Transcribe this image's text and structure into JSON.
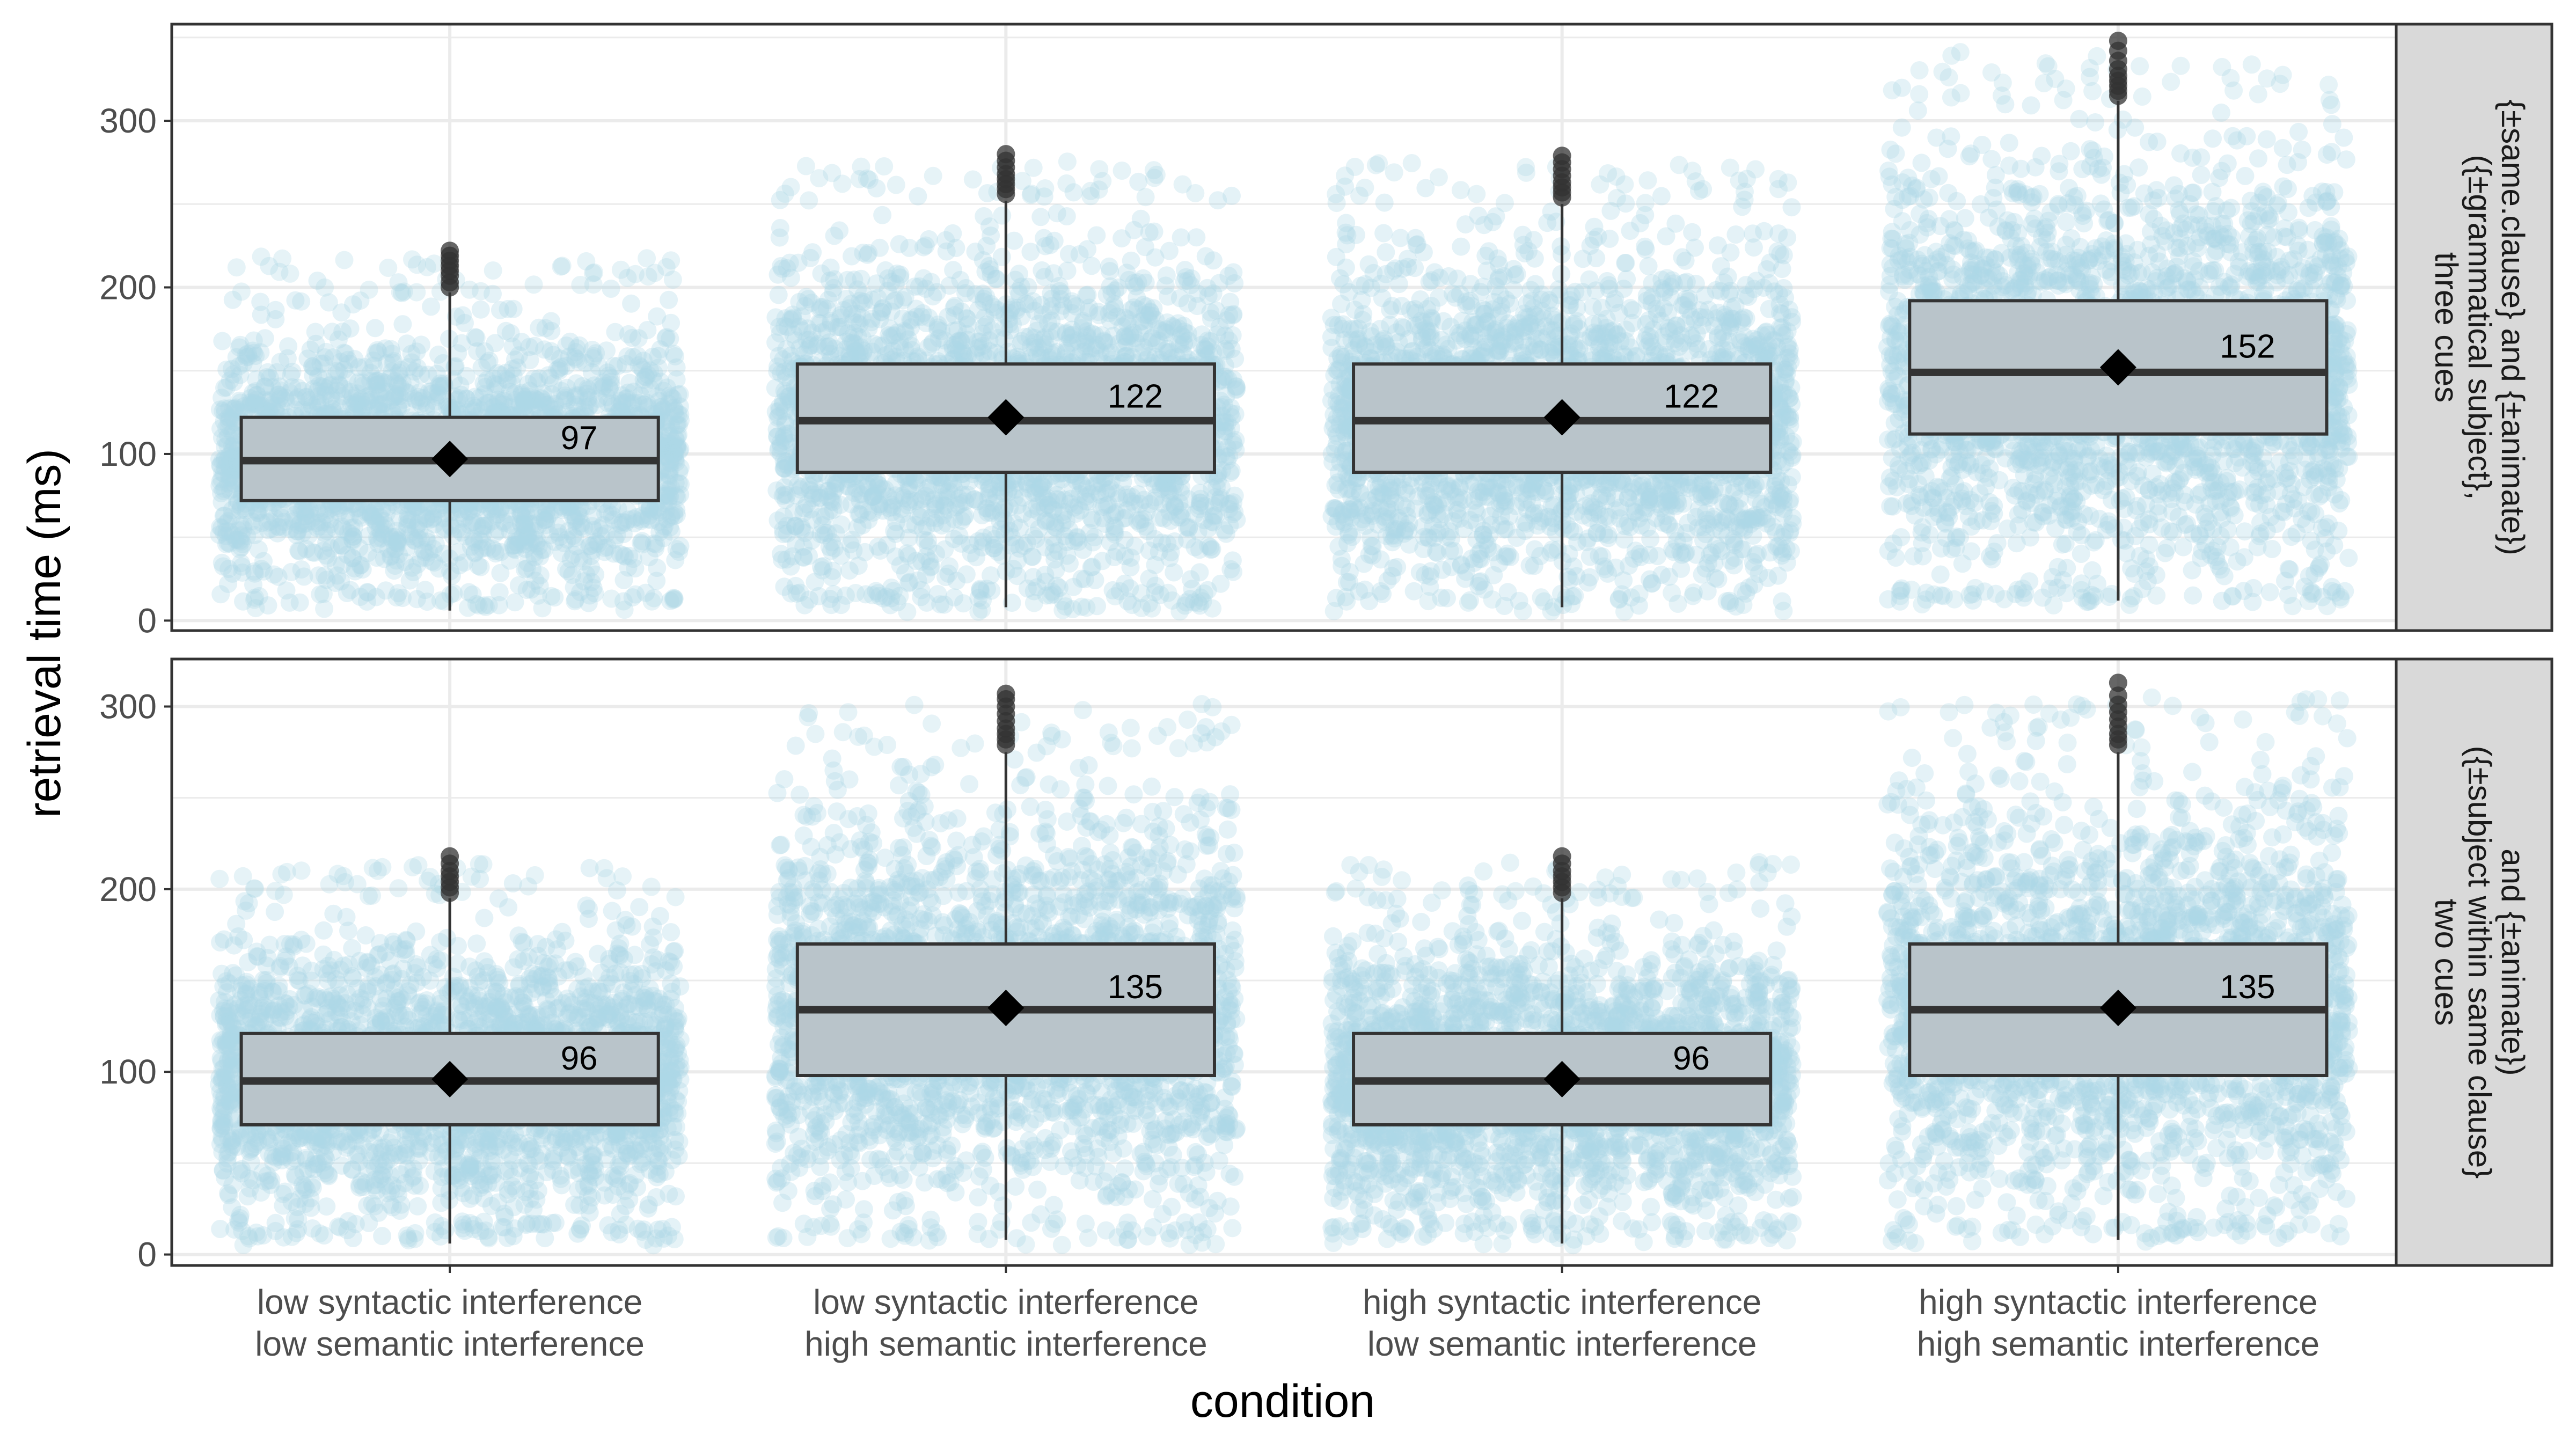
{
  "chart_data": {
    "type": "boxplot",
    "xlabel": "condition",
    "ylabel": "retrieval time (ms)",
    "ylim": [
      -6,
      358
    ],
    "y_ticks": [
      0,
      100,
      200,
      300
    ],
    "categories": [
      [
        "low syntactic interference",
        "low semantic interference"
      ],
      [
        "low syntactic interference",
        "high semantic interference"
      ],
      [
        "high syntactic interference",
        "low semantic interference"
      ],
      [
        "high syntactic interference",
        "high semantic interference"
      ]
    ],
    "colors": {
      "points": "#add8e6",
      "box_fill": "#b9c4ca",
      "line": "#333333",
      "strip": "#d9d9d9",
      "grid": "#ebebeb"
    },
    "legend": "none",
    "grid": true,
    "panels": [
      {
        "strip": [
          "three cues",
          "({±grammatical subject},",
          "{±same.clause} and {±animate})"
        ],
        "ylim": [
          -6,
          358
        ],
        "boxes": [
          {
            "q1": 72,
            "median": 96,
            "q3": 122,
            "whisker_low": 6,
            "whisker_high": 197,
            "mean": 97,
            "mean_label": "97",
            "point_min": 6,
            "point_max": 224,
            "outliers": [
              200,
              203,
              207,
              210,
              213,
              216,
              219,
              222
            ]
          },
          {
            "q1": 89,
            "median": 120,
            "q3": 154,
            "whisker_low": 8,
            "whisker_high": 252,
            "mean": 122,
            "mean_label": "122",
            "point_min": 5,
            "point_max": 282,
            "outliers": [
              256,
              259,
              262,
              265,
              268,
              272,
              276,
              280
            ]
          },
          {
            "q1": 89,
            "median": 120,
            "q3": 154,
            "whisker_low": 8,
            "whisker_high": 250,
            "mean": 122,
            "mean_label": "122",
            "point_min": 5,
            "point_max": 281,
            "outliers": [
              254,
              257,
              260,
              263,
              267,
              271,
              275,
              279
            ]
          },
          {
            "q1": 112,
            "median": 149,
            "q3": 192,
            "whisker_low": 12,
            "whisker_high": 312,
            "mean": 152,
            "mean_label": "152",
            "point_min": 8,
            "point_max": 349,
            "outliers": [
              315,
              318,
              321,
              324,
              327,
              331,
              336,
              342,
              348
            ]
          }
        ]
      },
      {
        "strip": [
          "two cues",
          "({±subject within same clause}",
          "and {±animate})"
        ],
        "ylim": [
          -6,
          326
        ],
        "boxes": [
          {
            "q1": 71,
            "median": 95,
            "q3": 121,
            "whisker_low": 6,
            "whisker_high": 195,
            "mean": 96,
            "mean_label": "96",
            "point_min": 5,
            "point_max": 221,
            "outliers": [
              198,
              201,
              204,
              207,
              210,
              214,
              218
            ]
          },
          {
            "q1": 98,
            "median": 134,
            "q3": 170,
            "whisker_low": 8,
            "whisker_high": 275,
            "mean": 135,
            "mean_label": "135",
            "point_min": 5,
            "point_max": 309,
            "outliers": [
              279,
              282,
              285,
              288,
              292,
              296,
              300,
              304,
              307
            ]
          },
          {
            "q1": 71,
            "median": 95,
            "q3": 121,
            "whisker_low": 6,
            "whisker_high": 195,
            "mean": 96,
            "mean_label": "96",
            "point_min": 5,
            "point_max": 220,
            "outliers": [
              198,
              201,
              204,
              207,
              210,
              214,
              218
            ]
          },
          {
            "q1": 98,
            "median": 134,
            "q3": 170,
            "whisker_low": 8,
            "whisker_high": 275,
            "mean": 135,
            "mean_label": "135",
            "point_min": 6,
            "point_max": 314,
            "outliers": [
              279,
              282,
              285,
              289,
              293,
              297,
              301,
              306,
              313
            ]
          }
        ]
      }
    ]
  }
}
